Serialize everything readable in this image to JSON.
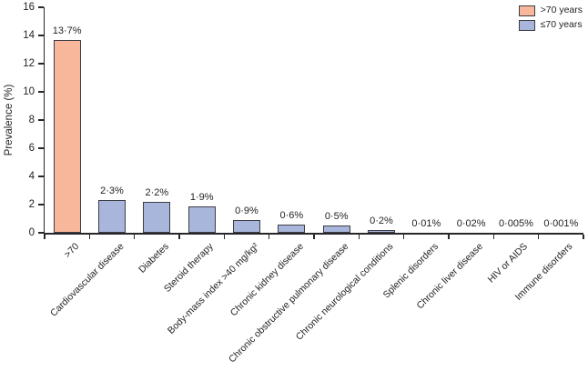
{
  "chart_data": {
    "type": "bar",
    "title": "",
    "xlabel": "",
    "ylabel": "Prevalence (%)",
    "ylim": [
      0,
      16
    ],
    "ytick_step": 2,
    "grid": false,
    "legend_position": "top-right",
    "decimal_separator": "·",
    "legend": [
      {
        "label": ">70 years",
        "color": "#F8B79B"
      },
      {
        "label": "≤70 years",
        "color": "#A9B6DB"
      }
    ],
    "categories": [
      ">70",
      "Cardiovascular disease",
      "Diabetes",
      "Steroid therapy",
      "Body-mass index >40 mg/kg²",
      "Chronic kidney disease",
      "Chronic obstructive pulmonary disease",
      "Chronic neurological conditions",
      "Splenic disorders",
      "Chronic liver disease",
      "HIV or AIDS",
      "Immune disorders"
    ],
    "values": [
      13.7,
      2.3,
      2.2,
      1.9,
      0.9,
      0.6,
      0.5,
      0.2,
      0.01,
      0.02,
      0.005,
      0.001
    ],
    "bars": [
      {
        "category": ">70",
        "value": 13.7,
        "label": "13·7%",
        "legend_index": 0
      },
      {
        "category": "Cardiovascular disease",
        "value": 2.3,
        "label": "2·3%",
        "legend_index": 1
      },
      {
        "category": "Diabetes",
        "value": 2.2,
        "label": "2·2%",
        "legend_index": 1
      },
      {
        "category": "Steroid therapy",
        "value": 1.9,
        "label": "1·9%",
        "legend_index": 1
      },
      {
        "category": "Body-mass index >40 mg/kg²",
        "value": 0.9,
        "label": "0·9%",
        "legend_index": 1
      },
      {
        "category": "Chronic kidney disease",
        "value": 0.6,
        "label": "0·6%",
        "legend_index": 1
      },
      {
        "category": "Chronic obstructive pulmonary disease",
        "value": 0.5,
        "label": "0·5%",
        "legend_index": 1
      },
      {
        "category": "Chronic neurological conditions",
        "value": 0.2,
        "label": "0·2%",
        "legend_index": 1
      },
      {
        "category": "Splenic disorders",
        "value": 0.01,
        "label": "0·01%",
        "legend_index": 1
      },
      {
        "category": "Chronic liver disease",
        "value": 0.02,
        "label": "0·02%",
        "legend_index": 1
      },
      {
        "category": "HIV or AIDS",
        "value": 0.005,
        "label": "0·005%",
        "legend_index": 1
      },
      {
        "category": "Immune disorders",
        "value": 0.001,
        "label": "0·001%",
        "legend_index": 1
      }
    ],
    "colors": {
      "axis": "#29262b",
      "bar_border": "#3d3d45",
      "text": "#232323",
      "background": "#ffffff"
    }
  }
}
